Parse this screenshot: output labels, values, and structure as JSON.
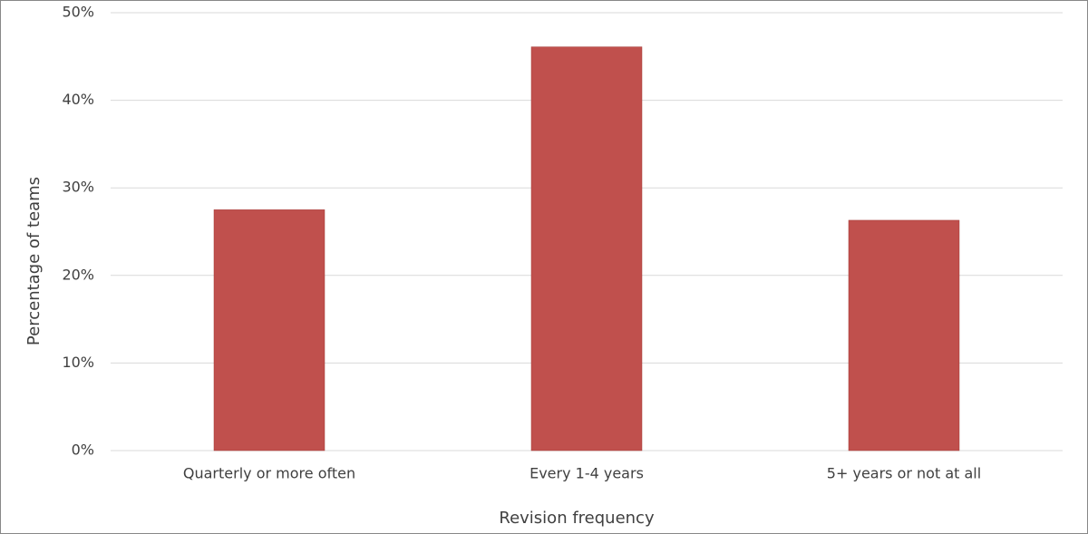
{
  "chart_data": {
    "type": "bar",
    "x_label": "Revision frequency",
    "y_label": "Percentage of teams",
    "categories": [
      "Quarterly or more often",
      "Every 1-4 years",
      "5+ years or not at all"
    ],
    "values": [
      27.5,
      46.1,
      26.3
    ],
    "color": "#c0504d",
    "ylim": [
      0,
      50
    ],
    "yticks": [
      {
        "value": 0,
        "label": "0%"
      },
      {
        "value": 10,
        "label": "10%"
      },
      {
        "value": 20,
        "label": "20%"
      },
      {
        "value": 30,
        "label": "30%"
      },
      {
        "value": 40,
        "label": "40%"
      },
      {
        "value": 50,
        "label": "50%"
      }
    ],
    "grid": true
  }
}
